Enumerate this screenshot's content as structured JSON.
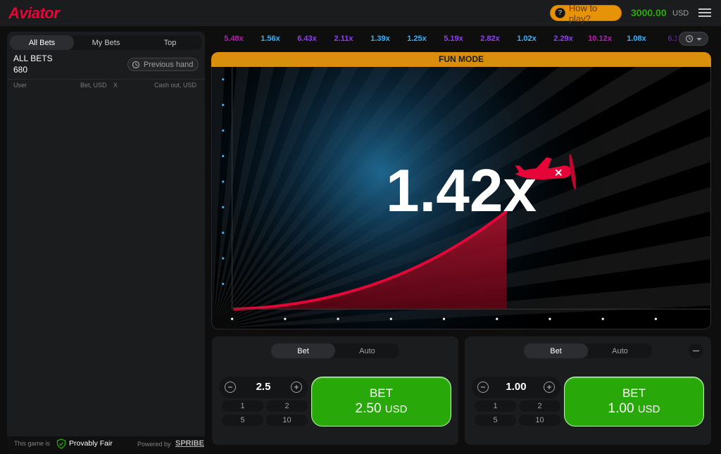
{
  "header": {
    "logo": "Aviator",
    "how_to_play": "How to play?",
    "balance": "3000.00",
    "currency": "USD"
  },
  "history": [
    {
      "label": "5.48x",
      "color": "#c017b4"
    },
    {
      "label": "1.56x",
      "color": "#34b4ff"
    },
    {
      "label": "6.43x",
      "color": "#913ef8"
    },
    {
      "label": "2.11x",
      "color": "#913ef8"
    },
    {
      "label": "1.39x",
      "color": "#34b4ff"
    },
    {
      "label": "1.25x",
      "color": "#34b4ff"
    },
    {
      "label": "5.19x",
      "color": "#913ef8"
    },
    {
      "label": "2.82x",
      "color": "#913ef8"
    },
    {
      "label": "1.02x",
      "color": "#34b4ff"
    },
    {
      "label": "2.29x",
      "color": "#913ef8"
    },
    {
      "label": "10.12x",
      "color": "#c017b4"
    },
    {
      "label": "1.08x",
      "color": "#34b4ff"
    },
    {
      "label": "6.1",
      "color": "#913ef8"
    }
  ],
  "bets_panel": {
    "tabs": [
      "All Bets",
      "My Bets",
      "Top"
    ],
    "title": "ALL BETS",
    "count": "680",
    "previous_hand": "Previous hand",
    "columns": [
      "User",
      "Bet, USD",
      "X",
      "Cash out, USD"
    ],
    "footer": {
      "text": "This game is",
      "provably_fair": "Provably Fair",
      "powered_by": "Powered by",
      "brand": "SPRIBE"
    }
  },
  "game": {
    "banner": "FUN MODE",
    "multiplier": "1.42x"
  },
  "bet_controls": [
    {
      "tabs": [
        "Bet",
        "Auto"
      ],
      "amount": "2.5",
      "quick": [
        "1",
        "2",
        "5",
        "10"
      ],
      "button": "BET",
      "button_amount": "2.50",
      "button_currency": "USD"
    },
    {
      "tabs": [
        "Bet",
        "Auto"
      ],
      "amount": "1.00",
      "quick": [
        "1",
        "2",
        "5",
        "10"
      ],
      "button": "BET",
      "button_amount": "1.00",
      "button_currency": "USD"
    }
  ]
}
